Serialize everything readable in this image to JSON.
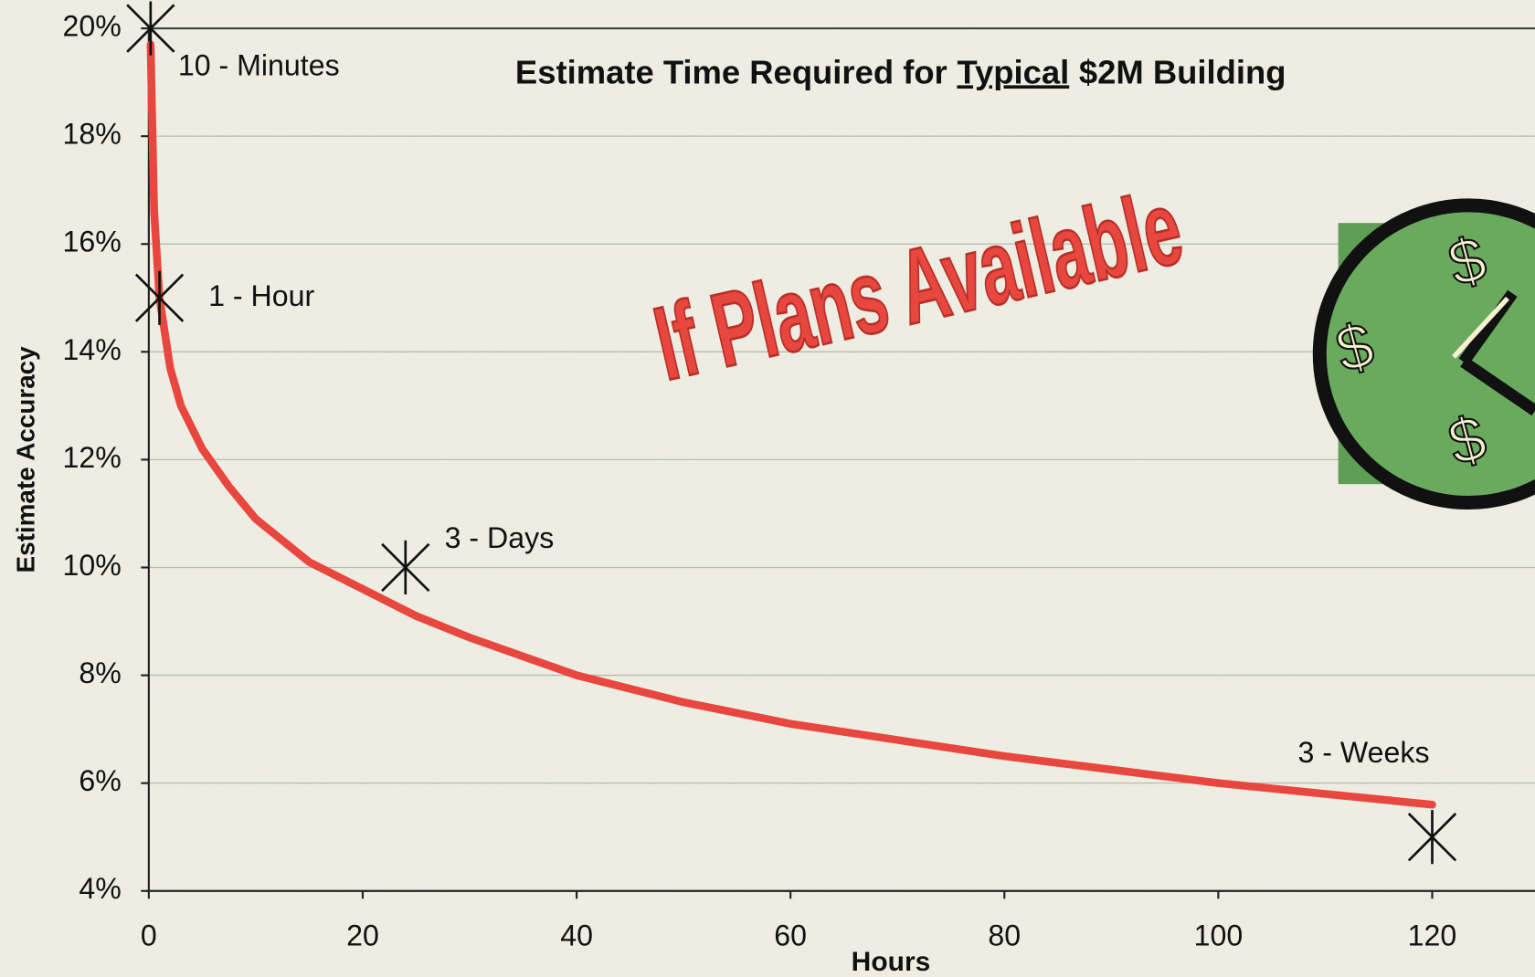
{
  "chart_data": {
    "type": "line",
    "title_parts": [
      "Estimate Time Required for",
      "Typical",
      "$2M Building"
    ],
    "annotation": "If Plans Available",
    "clock_symbols": [
      "$",
      "$",
      "$"
    ],
    "xlabel": "Hours",
    "ylabel": "Estimate Accuracy",
    "xlim": [
      0,
      130
    ],
    "ylim": [
      4,
      20
    ],
    "xticks": [
      0,
      20,
      40,
      60,
      80,
      100,
      120
    ],
    "yticks": [
      {
        "value": 4,
        "label": "4%"
      },
      {
        "value": 6,
        "label": "6%"
      },
      {
        "value": 8,
        "label": "8%"
      },
      {
        "value": 10,
        "label": "10%"
      },
      {
        "value": 12,
        "label": "12%"
      },
      {
        "value": 14,
        "label": "14%"
      },
      {
        "value": 16,
        "label": "16%"
      },
      {
        "value": 18,
        "label": "18%"
      },
      {
        "value": 20,
        "label": "20%"
      }
    ],
    "grid": true,
    "series": [
      {
        "color": "#e8473f",
        "x": [
          0.17,
          0.5,
          1,
          2,
          3,
          5,
          7.5,
          10,
          15,
          20,
          25,
          30,
          40,
          50,
          60,
          70,
          80,
          90,
          100,
          110,
          120
        ],
        "values": [
          19.7,
          16.6,
          15.0,
          13.7,
          13.0,
          12.2,
          11.5,
          10.9,
          10.1,
          9.6,
          9.1,
          8.7,
          8.0,
          7.5,
          7.1,
          6.8,
          6.5,
          6.25,
          6.0,
          5.8,
          5.6
        ]
      },
      {
        "color": "#111111",
        "marker": "x",
        "x": [
          0.17,
          1,
          24,
          120
        ],
        "values": [
          20,
          15,
          10,
          5
        ],
        "labels": [
          "10 - Minutes",
          "1 - Hour",
          "3 - Days",
          "3 - Weeks"
        ]
      }
    ]
  }
}
